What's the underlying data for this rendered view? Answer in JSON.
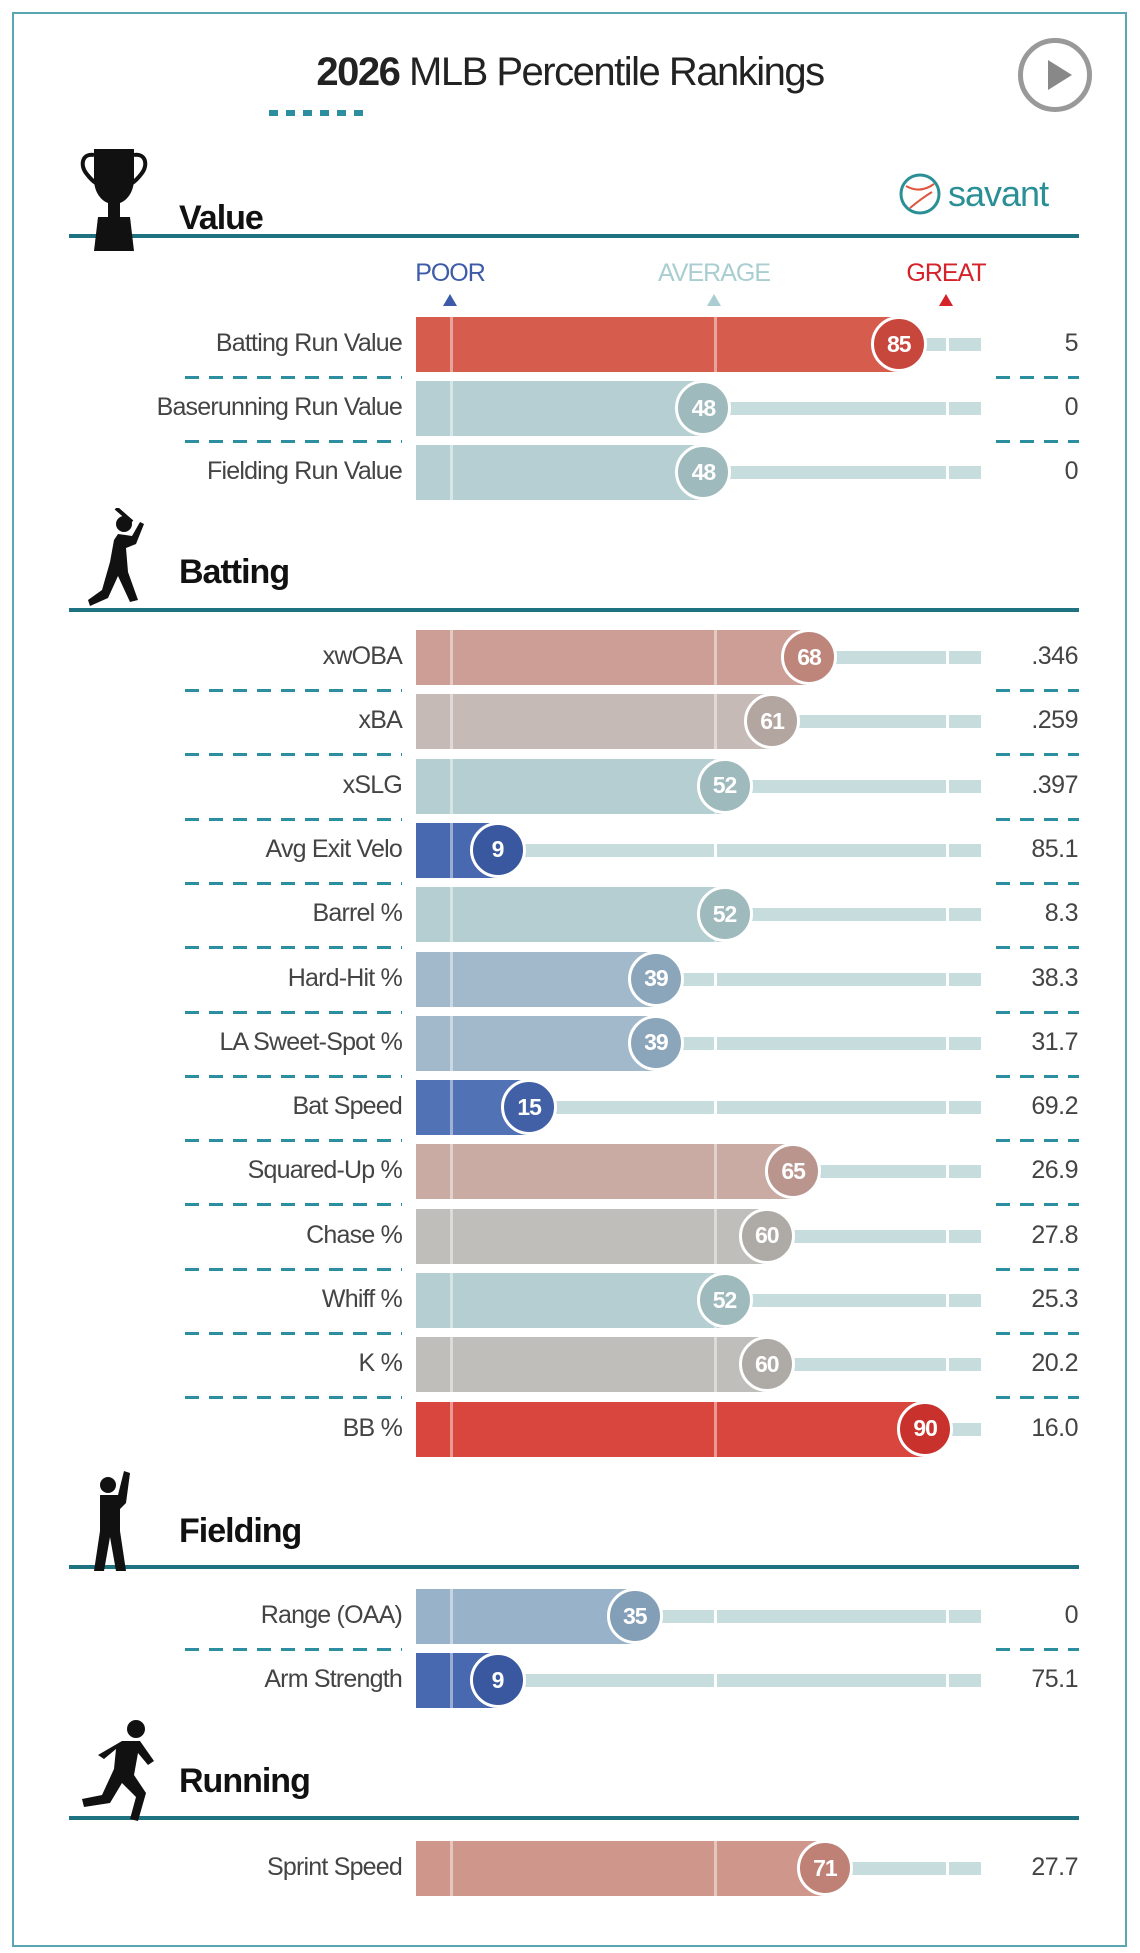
{
  "header": {
    "year": "2026",
    "title_rest": "MLB Percentile Rankings",
    "play_button": "play-icon",
    "logo_text": "savant"
  },
  "scale_labels": {
    "poor": "POOR",
    "average": "AVERAGE",
    "great": "GREAT",
    "poor_color": "#3d5ba8",
    "average_color": "#a9cdd1",
    "great_color": "#d4232b"
  },
  "chart_data": {
    "type": "bar",
    "xlim": [
      0,
      100
    ],
    "sections": [
      {
        "title": "Value",
        "icon": "trophy-icon",
        "rows": [
          {
            "label": "Batting Run Value",
            "percentile": 85,
            "value": "5",
            "color": "#d65c4e",
            "circle": "#c8473d"
          },
          {
            "label": "Baserunning Run Value",
            "percentile": 48,
            "value": "0",
            "color": "#b5cfd2",
            "circle": "#9fbabd"
          },
          {
            "label": "Fielding Run Value",
            "percentile": 48,
            "value": "0",
            "color": "#b5cfd2",
            "circle": "#9fbabd"
          }
        ]
      },
      {
        "title": "Batting",
        "icon": "batter-icon",
        "rows": [
          {
            "label": "xwOBA",
            "percentile": 68,
            "value": ".346",
            "color": "#cc9e95",
            "circle": "#be867b"
          },
          {
            "label": "xBA",
            "percentile": 61,
            "value": ".259",
            "color": "#c6bab6",
            "circle": "#b3a5a0"
          },
          {
            "label": "xSLG",
            "percentile": 52,
            "value": ".397",
            "color": "#b5ced1",
            "circle": "#9fbabd"
          },
          {
            "label": "Avg Exit Velo",
            "percentile": 9,
            "value": "85.1",
            "color": "#4868b0",
            "circle": "#3a58a0"
          },
          {
            "label": "Barrel %",
            "percentile": 52,
            "value": "8.3",
            "color": "#b5ced1",
            "circle": "#9fbabd"
          },
          {
            "label": "Hard-Hit %",
            "percentile": 39,
            "value": "38.3",
            "color": "#a1b9cb",
            "circle": "#8ba5ba"
          },
          {
            "label": "LA Sweet-Spot %",
            "percentile": 39,
            "value": "31.7",
            "color": "#a1b9cb",
            "circle": "#8ba5ba"
          },
          {
            "label": "Bat Speed",
            "percentile": 15,
            "value": "69.2",
            "color": "#5172b4",
            "circle": "#4260a6"
          },
          {
            "label": "Squared-Up %",
            "percentile": 65,
            "value": "26.9",
            "color": "#c9aba4",
            "circle": "#b9958d"
          },
          {
            "label": "Chase %",
            "percentile": 60,
            "value": "27.8",
            "color": "#c0bebb",
            "circle": "#aeaaa6"
          },
          {
            "label": "Whiff %",
            "percentile": 52,
            "value": "25.3",
            "color": "#b5ced1",
            "circle": "#9fbabd"
          },
          {
            "label": "K %",
            "percentile": 60,
            "value": "20.2",
            "color": "#c0bebb",
            "circle": "#aeaaa6"
          },
          {
            "label": "BB %",
            "percentile": 90,
            "value": "16.0",
            "color": "#d9463d",
            "circle": "#c9322c"
          }
        ]
      },
      {
        "title": "Fielding",
        "icon": "fielder-icon",
        "rows": [
          {
            "label": "Range (OAA)",
            "percentile": 35,
            "value": "0",
            "color": "#98b2c9",
            "circle": "#839eb7"
          },
          {
            "label": "Arm Strength",
            "percentile": 9,
            "value": "75.1",
            "color": "#4868b0",
            "circle": "#3a58a0"
          }
        ]
      },
      {
        "title": "Running",
        "icon": "runner-icon",
        "rows": [
          {
            "label": "Sprint Speed",
            "percentile": 71,
            "value": "27.7",
            "color": "#cf978b",
            "circle": "#bf8175"
          }
        ]
      }
    ]
  }
}
